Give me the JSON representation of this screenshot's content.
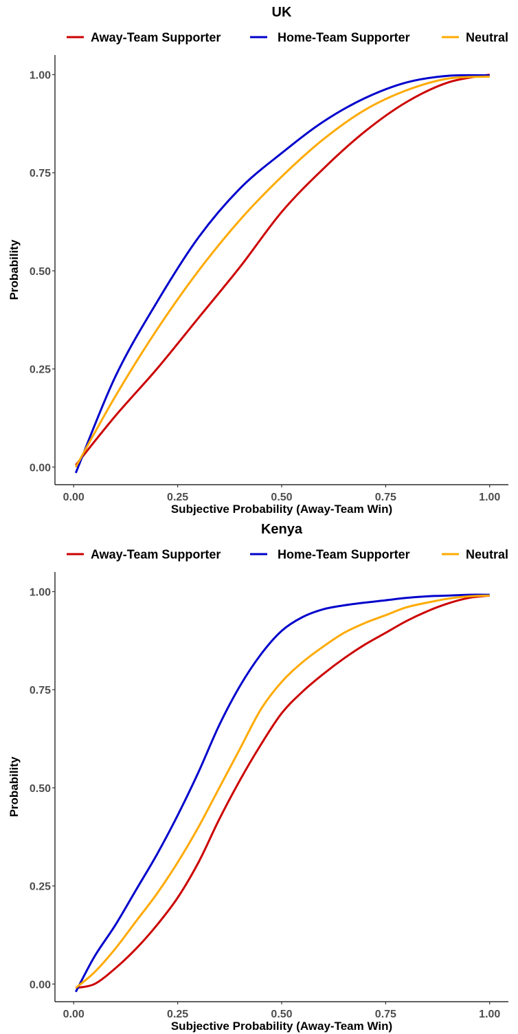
{
  "chart_data": [
    {
      "type": "line",
      "title": "UK",
      "xlabel": "Subjective Probability (Away-Team Win)",
      "ylabel": "Probability",
      "xlim": [
        -0.045,
        1.045
      ],
      "ylim": [
        -0.045,
        1.05
      ],
      "xticks": [
        0,
        0.25,
        0.5,
        0.75,
        1
      ],
      "xtick_labels": [
        "0.00",
        "0.25",
        "0.50",
        "0.75",
        "1.00"
      ],
      "yticks": [
        0,
        0.25,
        0.5,
        0.75,
        1
      ],
      "ytick_labels": [
        "0.00",
        "0.25",
        "0.50",
        "0.75",
        "1.00"
      ],
      "grid": false,
      "legend_position": "top",
      "series": [
        {
          "name": "Away-Team Supporter",
          "color": "#CC0000",
          "x": [
            0.005,
            0.1,
            0.2,
            0.3,
            0.4,
            0.5,
            0.6,
            0.7,
            0.8,
            0.9,
            1.0
          ],
          "y": [
            0.005,
            0.13,
            0.25,
            0.38,
            0.51,
            0.65,
            0.76,
            0.855,
            0.93,
            0.98,
            1.0
          ]
        },
        {
          "name": "Home-Team Supporter",
          "color": "#0000CC",
          "x": [
            0.005,
            0.1,
            0.2,
            0.3,
            0.4,
            0.5,
            0.6,
            0.7,
            0.8,
            0.9,
            1.0
          ],
          "y": [
            -0.015,
            0.23,
            0.42,
            0.585,
            0.71,
            0.8,
            0.88,
            0.94,
            0.98,
            0.997,
            0.998
          ]
        },
        {
          "name": "Neutral",
          "color": "#FFAA00",
          "x": [
            0.005,
            0.1,
            0.2,
            0.3,
            0.4,
            0.5,
            0.6,
            0.7,
            0.8,
            0.9,
            1.0
          ],
          "y": [
            0.0,
            0.18,
            0.35,
            0.5,
            0.63,
            0.74,
            0.835,
            0.91,
            0.96,
            0.99,
            0.995
          ]
        }
      ]
    },
    {
      "type": "line",
      "title": "Kenya",
      "xlabel": "Subjective Probability (Away-Team Win)",
      "ylabel": "Probability",
      "xlim": [
        -0.045,
        1.045
      ],
      "ylim": [
        -0.045,
        1.05
      ],
      "xticks": [
        0,
        0.25,
        0.5,
        0.75,
        1
      ],
      "xtick_labels": [
        "0.00",
        "0.25",
        "0.50",
        "0.75",
        "1.00"
      ],
      "yticks": [
        0,
        0.25,
        0.5,
        0.75,
        1
      ],
      "ytick_labels": [
        "0.00",
        "0.25",
        "0.50",
        "0.75",
        "1.00"
      ],
      "grid": false,
      "legend_position": "top",
      "series": [
        {
          "name": "Away-Team Supporter",
          "color": "#CC0000",
          "x": [
            0.005,
            0.05,
            0.1,
            0.15,
            0.2,
            0.25,
            0.3,
            0.35,
            0.4,
            0.45,
            0.5,
            0.55,
            0.6,
            0.65,
            0.7,
            0.75,
            0.8,
            0.85,
            0.9,
            0.95,
            1.0
          ],
          "y": [
            -0.01,
            0.0,
            0.04,
            0.09,
            0.15,
            0.22,
            0.31,
            0.42,
            0.52,
            0.61,
            0.69,
            0.745,
            0.79,
            0.83,
            0.865,
            0.895,
            0.925,
            0.95,
            0.97,
            0.984,
            0.99
          ]
        },
        {
          "name": "Home-Team Supporter",
          "color": "#0000CC",
          "x": [
            0.005,
            0.05,
            0.1,
            0.15,
            0.2,
            0.25,
            0.3,
            0.35,
            0.4,
            0.45,
            0.5,
            0.55,
            0.6,
            0.65,
            0.7,
            0.75,
            0.8,
            0.85,
            0.9,
            0.95,
            1.0
          ],
          "y": [
            -0.02,
            0.07,
            0.15,
            0.24,
            0.33,
            0.43,
            0.54,
            0.66,
            0.76,
            0.84,
            0.9,
            0.935,
            0.955,
            0.965,
            0.972,
            0.978,
            0.984,
            0.988,
            0.99,
            0.992,
            0.992
          ]
        },
        {
          "name": "Neutral",
          "color": "#FFAA00",
          "x": [
            0.005,
            0.05,
            0.1,
            0.15,
            0.2,
            0.25,
            0.3,
            0.35,
            0.4,
            0.45,
            0.5,
            0.55,
            0.6,
            0.65,
            0.7,
            0.75,
            0.8,
            0.85,
            0.9,
            0.95,
            1.0
          ],
          "y": [
            -0.01,
            0.03,
            0.09,
            0.16,
            0.23,
            0.31,
            0.4,
            0.5,
            0.6,
            0.7,
            0.77,
            0.82,
            0.86,
            0.895,
            0.92,
            0.94,
            0.96,
            0.972,
            0.982,
            0.988,
            0.99
          ]
        }
      ]
    }
  ]
}
